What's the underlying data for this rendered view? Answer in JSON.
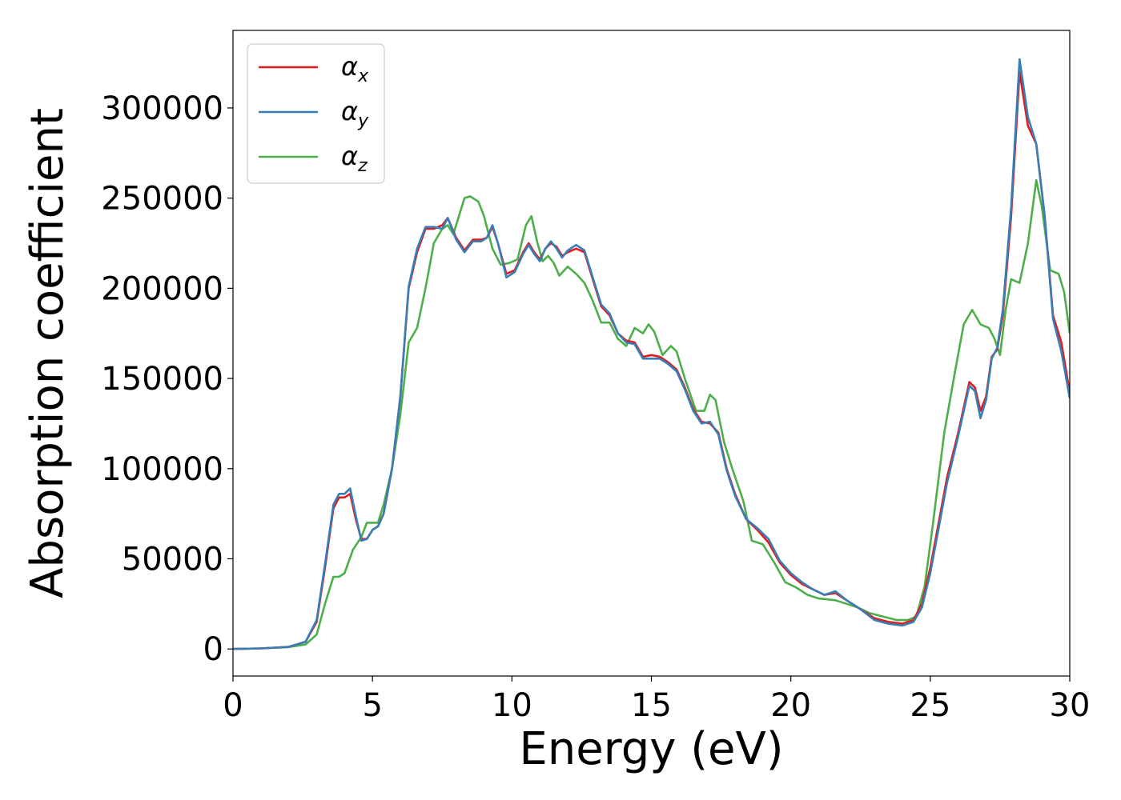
{
  "chart_data": {
    "type": "line",
    "title": "",
    "xlabel": "Energy (eV)",
    "ylabel": "Absorption coefficient",
    "xlim": [
      0,
      30
    ],
    "ylim": [
      -15000,
      343000
    ],
    "xticks": [
      0,
      5,
      10,
      15,
      20,
      25,
      30
    ],
    "yticks": [
      0,
      50000,
      100000,
      150000,
      200000,
      250000,
      300000
    ],
    "grid": false,
    "legend_position": "top-left",
    "series": [
      {
        "name": "α",
        "sub": "x",
        "color": "#e41a1c",
        "points": [
          [
            0,
            0
          ],
          [
            1,
            300
          ],
          [
            2,
            1200
          ],
          [
            2.6,
            4000
          ],
          [
            3,
            15000
          ],
          [
            3.3,
            45000
          ],
          [
            3.6,
            78000
          ],
          [
            3.8,
            84000
          ],
          [
            4.0,
            84000
          ],
          [
            4.2,
            86000
          ],
          [
            4.4,
            72000
          ],
          [
            4.6,
            61000
          ],
          [
            4.8,
            61000
          ],
          [
            5.0,
            66000
          ],
          [
            5.2,
            68000
          ],
          [
            5.4,
            75000
          ],
          [
            5.7,
            100000
          ],
          [
            6.0,
            140000
          ],
          [
            6.3,
            200000
          ],
          [
            6.6,
            220000
          ],
          [
            6.9,
            233000
          ],
          [
            7.2,
            233000
          ],
          [
            7.5,
            235000
          ],
          [
            7.7,
            239000
          ],
          [
            8.0,
            228000
          ],
          [
            8.3,
            221000
          ],
          [
            8.6,
            227000
          ],
          [
            8.9,
            227000
          ],
          [
            9.1,
            228000
          ],
          [
            9.3,
            234000
          ],
          [
            9.5,
            225000
          ],
          [
            9.8,
            208000
          ],
          [
            10.1,
            210000
          ],
          [
            10.4,
            220000
          ],
          [
            10.6,
            225000
          ],
          [
            10.8,
            220000
          ],
          [
            11.0,
            216000
          ],
          [
            11.2,
            222000
          ],
          [
            11.4,
            225000
          ],
          [
            11.6,
            223000
          ],
          [
            11.8,
            218000
          ],
          [
            12.0,
            220000
          ],
          [
            12.3,
            222000
          ],
          [
            12.6,
            220000
          ],
          [
            12.9,
            205000
          ],
          [
            13.2,
            190000
          ],
          [
            13.5,
            185000
          ],
          [
            13.8,
            175000
          ],
          [
            14.1,
            171000
          ],
          [
            14.4,
            170000
          ],
          [
            14.7,
            162000
          ],
          [
            15.0,
            163000
          ],
          [
            15.3,
            162000
          ],
          [
            15.6,
            159000
          ],
          [
            15.9,
            155000
          ],
          [
            16.2,
            145000
          ],
          [
            16.5,
            133000
          ],
          [
            16.8,
            126000
          ],
          [
            17.1,
            125000
          ],
          [
            17.4,
            120000
          ],
          [
            17.7,
            100000
          ],
          [
            18.0,
            86000
          ],
          [
            18.4,
            72000
          ],
          [
            18.8,
            66000
          ],
          [
            19.2,
            59000
          ],
          [
            19.6,
            48000
          ],
          [
            20.0,
            41000
          ],
          [
            20.4,
            36000
          ],
          [
            20.8,
            33000
          ],
          [
            21.2,
            30000
          ],
          [
            21.6,
            31000
          ],
          [
            22.0,
            27000
          ],
          [
            22.5,
            22000
          ],
          [
            23.0,
            17000
          ],
          [
            23.5,
            15000
          ],
          [
            24.0,
            14000
          ],
          [
            24.4,
            16000
          ],
          [
            24.7,
            25000
          ],
          [
            25.0,
            45000
          ],
          [
            25.3,
            70000
          ],
          [
            25.6,
            95000
          ],
          [
            26.0,
            120000
          ],
          [
            26.4,
            148000
          ],
          [
            26.6,
            145000
          ],
          [
            26.8,
            132000
          ],
          [
            27.0,
            140000
          ],
          [
            27.2,
            162000
          ],
          [
            27.4,
            166000
          ],
          [
            27.6,
            185000
          ],
          [
            27.9,
            240000
          ],
          [
            28.2,
            320000
          ],
          [
            28.5,
            290000
          ],
          [
            28.8,
            280000
          ],
          [
            29.1,
            240000
          ],
          [
            29.4,
            185000
          ],
          [
            29.7,
            170000
          ],
          [
            30.0,
            142000
          ]
        ]
      },
      {
        "name": "α",
        "sub": "y",
        "color": "#377eb8",
        "points": [
          [
            0,
            0
          ],
          [
            1,
            300
          ],
          [
            2,
            1200
          ],
          [
            2.6,
            4000
          ],
          [
            3,
            16000
          ],
          [
            3.3,
            47000
          ],
          [
            3.6,
            80000
          ],
          [
            3.8,
            86000
          ],
          [
            4.0,
            86000
          ],
          [
            4.2,
            89000
          ],
          [
            4.4,
            74000
          ],
          [
            4.6,
            60000
          ],
          [
            4.8,
            61000
          ],
          [
            5.0,
            66000
          ],
          [
            5.2,
            68000
          ],
          [
            5.4,
            75000
          ],
          [
            5.7,
            100000
          ],
          [
            6.0,
            140000
          ],
          [
            6.3,
            201000
          ],
          [
            6.6,
            222000
          ],
          [
            6.9,
            234000
          ],
          [
            7.2,
            234000
          ],
          [
            7.5,
            233000
          ],
          [
            7.7,
            239000
          ],
          [
            8.0,
            227000
          ],
          [
            8.3,
            220000
          ],
          [
            8.6,
            226000
          ],
          [
            8.9,
            226000
          ],
          [
            9.1,
            228000
          ],
          [
            9.3,
            235000
          ],
          [
            9.5,
            225000
          ],
          [
            9.8,
            206000
          ],
          [
            10.1,
            209000
          ],
          [
            10.4,
            219000
          ],
          [
            10.6,
            224000
          ],
          [
            10.8,
            219000
          ],
          [
            11.0,
            215000
          ],
          [
            11.2,
            222000
          ],
          [
            11.4,
            226000
          ],
          [
            11.6,
            222000
          ],
          [
            11.8,
            217000
          ],
          [
            12.0,
            221000
          ],
          [
            12.3,
            224000
          ],
          [
            12.6,
            221000
          ],
          [
            12.9,
            206000
          ],
          [
            13.2,
            191000
          ],
          [
            13.5,
            186000
          ],
          [
            13.8,
            175000
          ],
          [
            14.1,
            170000
          ],
          [
            14.4,
            169000
          ],
          [
            14.7,
            161000
          ],
          [
            15.0,
            161000
          ],
          [
            15.3,
            161000
          ],
          [
            15.6,
            158000
          ],
          [
            15.9,
            154000
          ],
          [
            16.2,
            144000
          ],
          [
            16.5,
            132000
          ],
          [
            16.8,
            125000
          ],
          [
            17.1,
            126000
          ],
          [
            17.4,
            119000
          ],
          [
            17.7,
            99000
          ],
          [
            18.0,
            85000
          ],
          [
            18.4,
            72000
          ],
          [
            18.8,
            67000
          ],
          [
            19.2,
            61000
          ],
          [
            19.6,
            49000
          ],
          [
            20.0,
            42000
          ],
          [
            20.4,
            37000
          ],
          [
            20.8,
            33000
          ],
          [
            21.2,
            30000
          ],
          [
            21.6,
            32000
          ],
          [
            22.0,
            27000
          ],
          [
            22.5,
            22000
          ],
          [
            23.0,
            16000
          ],
          [
            23.5,
            14000
          ],
          [
            24.0,
            13000
          ],
          [
            24.4,
            15000
          ],
          [
            24.7,
            23000
          ],
          [
            25.0,
            42000
          ],
          [
            25.3,
            67000
          ],
          [
            25.6,
            92000
          ],
          [
            26.0,
            118000
          ],
          [
            26.4,
            146000
          ],
          [
            26.6,
            143000
          ],
          [
            26.8,
            128000
          ],
          [
            27.0,
            138000
          ],
          [
            27.2,
            161000
          ],
          [
            27.4,
            167000
          ],
          [
            27.6,
            188000
          ],
          [
            27.9,
            245000
          ],
          [
            28.2,
            327000
          ],
          [
            28.5,
            295000
          ],
          [
            28.8,
            280000
          ],
          [
            29.1,
            240000
          ],
          [
            29.4,
            183000
          ],
          [
            29.7,
            165000
          ],
          [
            30.0,
            139000
          ]
        ]
      },
      {
        "name": "α",
        "sub": "z",
        "color": "#4daf4a",
        "points": [
          [
            0,
            0
          ],
          [
            1,
            300
          ],
          [
            2,
            1000
          ],
          [
            2.6,
            2500
          ],
          [
            3,
            8000
          ],
          [
            3.3,
            25000
          ],
          [
            3.6,
            40000
          ],
          [
            3.8,
            40000
          ],
          [
            4.0,
            42000
          ],
          [
            4.3,
            55000
          ],
          [
            4.6,
            62000
          ],
          [
            4.8,
            70000
          ],
          [
            5.0,
            70000
          ],
          [
            5.2,
            70000
          ],
          [
            5.4,
            80000
          ],
          [
            5.7,
            100000
          ],
          [
            6.0,
            130000
          ],
          [
            6.3,
            170000
          ],
          [
            6.6,
            178000
          ],
          [
            6.9,
            200000
          ],
          [
            7.2,
            225000
          ],
          [
            7.5,
            233000
          ],
          [
            7.7,
            235000
          ],
          [
            7.9,
            230000
          ],
          [
            8.1,
            240000
          ],
          [
            8.3,
            250000
          ],
          [
            8.5,
            251000
          ],
          [
            8.8,
            248000
          ],
          [
            9.0,
            240000
          ],
          [
            9.3,
            222000
          ],
          [
            9.6,
            213000
          ],
          [
            9.9,
            214000
          ],
          [
            10.2,
            216000
          ],
          [
            10.5,
            235000
          ],
          [
            10.7,
            240000
          ],
          [
            10.9,
            226000
          ],
          [
            11.1,
            215000
          ],
          [
            11.3,
            218000
          ],
          [
            11.5,
            214000
          ],
          [
            11.7,
            207000
          ],
          [
            12.0,
            212000
          ],
          [
            12.3,
            208000
          ],
          [
            12.6,
            203000
          ],
          [
            12.9,
            193000
          ],
          [
            13.2,
            181000
          ],
          [
            13.5,
            181000
          ],
          [
            13.8,
            172000
          ],
          [
            14.1,
            168000
          ],
          [
            14.4,
            178000
          ],
          [
            14.7,
            175000
          ],
          [
            14.9,
            180000
          ],
          [
            15.1,
            176000
          ],
          [
            15.4,
            163000
          ],
          [
            15.7,
            168000
          ],
          [
            15.9,
            165000
          ],
          [
            16.2,
            150000
          ],
          [
            16.6,
            132000
          ],
          [
            16.9,
            132000
          ],
          [
            17.1,
            141000
          ],
          [
            17.3,
            138000
          ],
          [
            17.6,
            115000
          ],
          [
            17.9,
            100000
          ],
          [
            18.3,
            82000
          ],
          [
            18.6,
            60000
          ],
          [
            19.0,
            58000
          ],
          [
            19.4,
            48000
          ],
          [
            19.8,
            37000
          ],
          [
            20.2,
            34000
          ],
          [
            20.6,
            30000
          ],
          [
            21.0,
            28000
          ],
          [
            21.6,
            27000
          ],
          [
            22.0,
            25000
          ],
          [
            22.4,
            23000
          ],
          [
            22.8,
            20000
          ],
          [
            23.3,
            18000
          ],
          [
            23.8,
            16000
          ],
          [
            24.2,
            16000
          ],
          [
            24.5,
            18000
          ],
          [
            24.8,
            35000
          ],
          [
            25.1,
            70000
          ],
          [
            25.5,
            120000
          ],
          [
            25.9,
            155000
          ],
          [
            26.2,
            180000
          ],
          [
            26.5,
            188000
          ],
          [
            26.8,
            180000
          ],
          [
            27.1,
            178000
          ],
          [
            27.3,
            172000
          ],
          [
            27.5,
            163000
          ],
          [
            27.7,
            188000
          ],
          [
            27.9,
            205000
          ],
          [
            28.2,
            203000
          ],
          [
            28.5,
            225000
          ],
          [
            28.8,
            260000
          ],
          [
            29.0,
            245000
          ],
          [
            29.3,
            210000
          ],
          [
            29.6,
            208000
          ],
          [
            29.8,
            198000
          ],
          [
            30.0,
            175000
          ]
        ]
      }
    ]
  }
}
